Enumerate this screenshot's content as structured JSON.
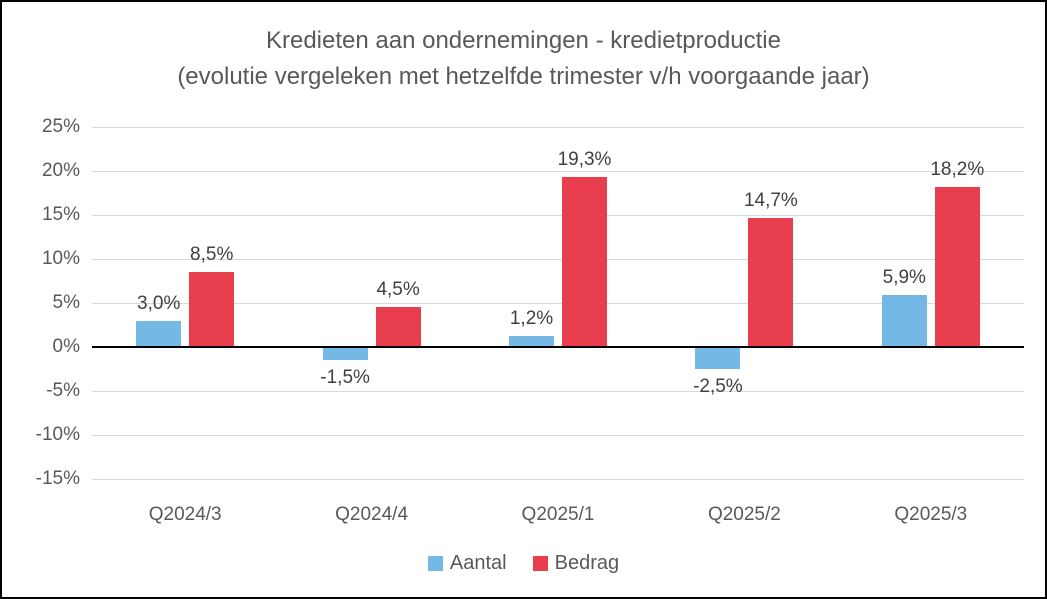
{
  "chart_data": {
    "type": "bar",
    "title": "Kredieten aan ondernemingen - kredietproductie",
    "subtitle": "(evolutie vergeleken met hetzelfde trimester v/h voorgaande jaar)",
    "categories": [
      "Q2024/3",
      "Q2024/4",
      "Q2025/1",
      "Q2025/2",
      "Q2025/3"
    ],
    "series": [
      {
        "name": "Aantal",
        "color": "#74B8E5",
        "values": [
          3.0,
          -1.5,
          1.2,
          -2.5,
          5.9
        ],
        "labels": [
          "3,0%",
          "-1,5%",
          "1,2%",
          "-2,5%",
          "5,9%"
        ]
      },
      {
        "name": "Bedrag",
        "color": "#E93E4E",
        "values": [
          8.5,
          4.5,
          19.3,
          14.7,
          18.2
        ],
        "labels": [
          "8,5%",
          "4,5%",
          "19,3%",
          "14,7%",
          "18,2%"
        ]
      }
    ],
    "y_axis": {
      "min": -15,
      "max": 25,
      "step": 5,
      "tick_labels": [
        "25%",
        "20%",
        "15%",
        "10%",
        "5%",
        "0%",
        "-5%",
        "-10%",
        "-15%"
      ]
    },
    "legend": {
      "position": "bottom",
      "entries": [
        "Aantal",
        "Bedrag"
      ]
    },
    "grid": true,
    "gridline_color": "#D9D9D9",
    "zero_line_color": "#000000",
    "axis_text_color": "#595959",
    "data_label_color": "#404040",
    "title_color": "#595959"
  }
}
